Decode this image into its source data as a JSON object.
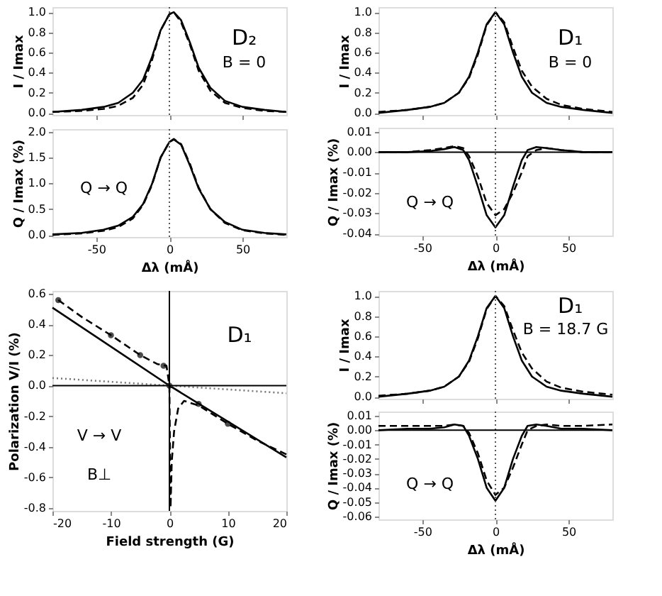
{
  "chart_data": [
    {
      "type": "line",
      "ylabel": "I / Imax",
      "annotations": [
        "D₂",
        "B = 0"
      ],
      "xlim": [
        -80,
        80
      ],
      "xticks": [
        {
          "value": -50,
          "label": null
        },
        {
          "value": 0,
          "label": null
        },
        {
          "value": 50,
          "label": null
        }
      ],
      "ylim": [
        -0.02,
        1.05
      ],
      "yticks": [
        {
          "value": 0,
          "label": "0.0"
        },
        {
          "value": 0.2,
          "label": "0.2"
        },
        {
          "value": 0.4,
          "label": "0.4"
        },
        {
          "value": 0.6,
          "label": "0.6"
        },
        {
          "value": 0.8,
          "label": "0.8"
        },
        {
          "value": 1,
          "label": "1.0"
        }
      ],
      "tick_labels": "y",
      "grid": false,
      "x": [
        -80,
        -60,
        -45,
        -35,
        -25,
        -18,
        -12,
        -6,
        0,
        3,
        8,
        14,
        20,
        28,
        38,
        50,
        65,
        80
      ],
      "series": [
        {
          "color": "#000000",
          "line_style": "solid",
          "values": [
            0.01,
            0.03,
            0.06,
            0.1,
            0.2,
            0.33,
            0.55,
            0.82,
            0.98,
            1.0,
            0.92,
            0.7,
            0.45,
            0.25,
            0.12,
            0.06,
            0.03,
            0.01
          ]
        },
        {
          "color": "#000000",
          "line_style": "dashed",
          "values": [
            0.01,
            0.02,
            0.04,
            0.07,
            0.15,
            0.28,
            0.52,
            0.82,
            0.98,
            1.0,
            0.9,
            0.68,
            0.42,
            0.22,
            0.1,
            0.05,
            0.02,
            0.01
          ]
        }
      ],
      "ref_lines": [
        {
          "axis": "x",
          "value": 0,
          "line_style": "dotted",
          "color": "#555555"
        }
      ]
    },
    {
      "type": "line",
      "ylabel": "Q / Imax (%)",
      "xlabel": "Δλ (mÅ)",
      "annotations": [
        "Q → Q"
      ],
      "xlim": [
        -80,
        80
      ],
      "xticks": [
        {
          "value": -50,
          "label": "-50"
        },
        {
          "value": 0,
          "label": "0"
        },
        {
          "value": 50,
          "label": "50"
        }
      ],
      "ylim": [
        -0.04,
        2.05
      ],
      "yticks": [
        {
          "value": 0,
          "label": "0.0"
        },
        {
          "value": 0.5,
          "label": "0.5"
        },
        {
          "value": 1,
          "label": "1.0"
        },
        {
          "value": 1.5,
          "label": "1.5"
        },
        {
          "value": 2,
          "label": "2.0"
        }
      ],
      "grid": false,
      "x": [
        -80,
        -60,
        -45,
        -35,
        -25,
        -18,
        -12,
        -6,
        0,
        3,
        8,
        14,
        20,
        28,
        38,
        50,
        65,
        80
      ],
      "series": [
        {
          "color": "#000000",
          "line_style": "solid",
          "values": [
            0.01,
            0.04,
            0.1,
            0.18,
            0.35,
            0.6,
            0.98,
            1.5,
            1.8,
            1.85,
            1.75,
            1.35,
            0.9,
            0.5,
            0.25,
            0.1,
            0.04,
            0.01
          ]
        },
        {
          "color": "#000000",
          "line_style": "dashed",
          "values": [
            0.0,
            0.03,
            0.08,
            0.15,
            0.32,
            0.58,
            0.96,
            1.5,
            1.8,
            1.86,
            1.76,
            1.38,
            0.92,
            0.5,
            0.23,
            0.09,
            0.03,
            0.0
          ]
        }
      ],
      "ref_lines": [
        {
          "axis": "x",
          "value": 0,
          "line_style": "dotted",
          "color": "#555555"
        }
      ]
    },
    {
      "type": "line",
      "ylabel": "I / Imax",
      "annotations": [
        "D₁",
        "B = 0"
      ],
      "xlim": [
        -80,
        80
      ],
      "xticks": [
        {
          "value": -50,
          "label": null
        },
        {
          "value": 0,
          "label": null
        },
        {
          "value": 50,
          "label": null
        }
      ],
      "ylim": [
        -0.02,
        1.05
      ],
      "yticks": [
        {
          "value": 0,
          "label": "0.0"
        },
        {
          "value": 0.2,
          "label": "0.2"
        },
        {
          "value": 0.4,
          "label": "0.4"
        },
        {
          "value": 0.6,
          "label": "0.6"
        },
        {
          "value": 0.8,
          "label": "0.8"
        },
        {
          "value": 1,
          "label": "1.0"
        }
      ],
      "tick_labels": "y",
      "grid": false,
      "x": [
        -80,
        -60,
        -45,
        -35,
        -25,
        -18,
        -12,
        -6,
        0,
        6,
        12,
        18,
        25,
        35,
        45,
        60,
        80
      ],
      "series": [
        {
          "color": "#000000",
          "line_style": "solid",
          "values": [
            0.0,
            0.03,
            0.06,
            0.1,
            0.2,
            0.36,
            0.6,
            0.88,
            1.0,
            0.88,
            0.6,
            0.36,
            0.2,
            0.1,
            0.06,
            0.03,
            0.0
          ]
        },
        {
          "color": "#000000",
          "line_style": "dashed",
          "values": [
            0.01,
            0.03,
            0.06,
            0.1,
            0.2,
            0.35,
            0.58,
            0.87,
            1.0,
            0.9,
            0.65,
            0.42,
            0.26,
            0.14,
            0.08,
            0.04,
            0.01
          ]
        }
      ],
      "ref_lines": [
        {
          "axis": "x",
          "value": 0,
          "line_style": "dotted",
          "color": "#555555"
        }
      ]
    },
    {
      "type": "line",
      "ylabel": "Q / Imax (%)",
      "xlabel": "Δλ (mÅ)",
      "annotations": [
        "Q → Q"
      ],
      "xlim": [
        -80,
        80
      ],
      "xticks": [
        {
          "value": -50,
          "label": "-50"
        },
        {
          "value": 0,
          "label": "0"
        },
        {
          "value": 50,
          "label": "50"
        }
      ],
      "ylim": [
        -0.041,
        0.012
      ],
      "yticks": [
        {
          "value": 0.01,
          "label": "0.01"
        },
        {
          "value": 0,
          "label": "0.00"
        },
        {
          "value": -0.01,
          "label": "-0.01"
        },
        {
          "value": -0.02,
          "label": "-0.02"
        },
        {
          "value": -0.03,
          "label": "-0.03"
        },
        {
          "value": -0.04,
          "label": "-0.04"
        }
      ],
      "grid": false,
      "x": [
        -80,
        -60,
        -45,
        -35,
        -28,
        -22,
        -18,
        -12,
        -6,
        0,
        6,
        12,
        18,
        22,
        28,
        35,
        45,
        60,
        80
      ],
      "series": [
        {
          "color": "#000000",
          "line_style": "solid",
          "values": [
            0,
            0,
            0.0005,
            0.0015,
            0.0025,
            0.001,
            -0.004,
            -0.017,
            -0.031,
            -0.037,
            -0.031,
            -0.017,
            -0.004,
            0.001,
            0.0025,
            0.002,
            0.001,
            0,
            0
          ]
        },
        {
          "color": "#000000",
          "line_style": "dashed",
          "values": [
            0,
            0,
            0.001,
            0.002,
            0.003,
            0.002,
            -0.002,
            -0.012,
            -0.025,
            -0.031,
            -0.028,
            -0.02,
            -0.01,
            -0.002,
            0.001,
            0.002,
            0.001,
            0,
            0
          ]
        }
      ],
      "ref_lines": [
        {
          "axis": "x",
          "value": 0,
          "line_style": "dotted",
          "color": "#555555"
        },
        {
          "axis": "y",
          "value": 0,
          "line_style": "solid",
          "color": "#000000"
        }
      ]
    },
    {
      "type": "line",
      "ylabel": "Polarization V/I (%)",
      "xlabel": "Field strength (G)",
      "annotations": [
        "D₁",
        "V → V",
        "B⊥"
      ],
      "xlim": [
        -20,
        20
      ],
      "xticks": [
        -20,
        -10,
        0,
        10,
        20
      ],
      "ylim": [
        -0.82,
        0.62
      ],
      "yticks": [
        {
          "value": 0.6,
          "label": "0.6"
        },
        {
          "value": 0.4,
          "label": "0.4"
        },
        {
          "value": 0.2,
          "label": "0.2"
        },
        {
          "value": 0,
          "label": "0.0"
        },
        {
          "value": -0.2,
          "label": "-0.2"
        },
        {
          "value": -0.4,
          "label": "-0.4"
        },
        {
          "value": -0.6,
          "label": "-0.6"
        },
        {
          "value": -0.8,
          "label": "-0.8"
        }
      ],
      "grid": false,
      "series": [
        {
          "color": "#000000",
          "line_style": "solid",
          "x": [
            -20,
            0,
            20
          ],
          "values": [
            0.51,
            0.0,
            -0.47
          ]
        },
        {
          "color": "#000000",
          "line_style": "dashed",
          "x": [
            -19,
            -15,
            -10,
            -5,
            -2,
            -0.5,
            0,
            0.2,
            0.4,
            0.8,
            1.5,
            2.5,
            5,
            10,
            15,
            20
          ],
          "values": [
            0.56,
            0.45,
            0.33,
            0.2,
            0.14,
            0.13,
            0.0,
            -0.8,
            -0.5,
            -0.3,
            -0.15,
            -0.1,
            -0.13,
            -0.25,
            -0.36,
            -0.45
          ]
        },
        {
          "type": "scatter",
          "marker": "circle",
          "color": "#000000",
          "x": [
            -19,
            -10,
            -5,
            -1,
            0,
            5,
            10
          ],
          "values": [
            0.56,
            0.33,
            0.2,
            0.13,
            0.0,
            -0.12,
            -0.25
          ]
        },
        {
          "color": "#777777",
          "line_style": "dotted",
          "x": [
            -20,
            20
          ],
          "values": [
            0.05,
            -0.05
          ]
        }
      ],
      "ref_lines": [
        {
          "axis": "x",
          "value": 0,
          "line_style": "solid",
          "color": "#000000"
        },
        {
          "axis": "y",
          "value": 0,
          "line_style": "solid",
          "color": "#000000"
        }
      ]
    },
    {
      "type": "line",
      "ylabel": "I / Imax",
      "annotations": [
        "D₁",
        "B = 18.7 G"
      ],
      "xlim": [
        -80,
        80
      ],
      "xticks": [
        {
          "value": -50,
          "label": null
        },
        {
          "value": 0,
          "label": null
        },
        {
          "value": 50,
          "label": null
        }
      ],
      "ylim": [
        -0.02,
        1.05
      ],
      "yticks": [
        {
          "value": 0,
          "label": "0.0"
        },
        {
          "value": 0.2,
          "label": "0.2"
        },
        {
          "value": 0.4,
          "label": "0.4"
        },
        {
          "value": 0.6,
          "label": "0.6"
        },
        {
          "value": 0.8,
          "label": "0.8"
        },
        {
          "value": 1,
          "label": "1.0"
        }
      ],
      "tick_labels": "y",
      "grid": false,
      "x": [
        -80,
        -60,
        -45,
        -35,
        -25,
        -18,
        -12,
        -6,
        0,
        6,
        12,
        18,
        25,
        35,
        45,
        60,
        80
      ],
      "series": [
        {
          "color": "#000000",
          "line_style": "solid",
          "values": [
            0.0,
            0.03,
            0.06,
            0.1,
            0.2,
            0.36,
            0.6,
            0.88,
            1.0,
            0.88,
            0.6,
            0.36,
            0.2,
            0.1,
            0.06,
            0.03,
            0.0
          ]
        },
        {
          "color": "#000000",
          "line_style": "dashed",
          "values": [
            0.01,
            0.03,
            0.06,
            0.1,
            0.2,
            0.35,
            0.58,
            0.87,
            1.0,
            0.9,
            0.66,
            0.44,
            0.28,
            0.15,
            0.09,
            0.05,
            0.02
          ]
        }
      ],
      "ref_lines": [
        {
          "axis": "x",
          "value": 0,
          "line_style": "dotted",
          "color": "#555555"
        }
      ]
    },
    {
      "type": "line",
      "ylabel": "Q / Imax (%)",
      "xlabel": "Δλ (mÅ)",
      "annotations": [
        "Q → Q"
      ],
      "xlim": [
        -80,
        80
      ],
      "xticks": [
        {
          "value": -50,
          "label": "-50"
        },
        {
          "value": 0,
          "label": "0"
        },
        {
          "value": 50,
          "label": "50"
        }
      ],
      "ylim": [
        -0.062,
        0.013
      ],
      "yticks": [
        {
          "value": 0.01,
          "label": "0.01"
        },
        {
          "value": 0,
          "label": "0.00"
        },
        {
          "value": -0.01,
          "label": "-0.01"
        },
        {
          "value": -0.02,
          "label": "-0.02"
        },
        {
          "value": -0.03,
          "label": "-0.03"
        },
        {
          "value": -0.04,
          "label": "-0.04"
        },
        {
          "value": -0.05,
          "label": "-0.05"
        },
        {
          "value": -0.06,
          "label": "-0.06"
        }
      ],
      "grid": false,
      "x": [
        -80,
        -60,
        -45,
        -35,
        -28,
        -22,
        -18,
        -12,
        -6,
        0,
        6,
        12,
        18,
        22,
        28,
        35,
        45,
        60,
        80
      ],
      "series": [
        {
          "color": "#000000",
          "line_style": "solid",
          "values": [
            0,
            0.001,
            0.001,
            0.002,
            0.004,
            0.003,
            -0.004,
            -0.02,
            -0.04,
            -0.049,
            -0.04,
            -0.02,
            -0.004,
            0.003,
            0.004,
            0.003,
            0.001,
            0.001,
            0
          ]
        },
        {
          "color": "#000000",
          "line_style": "dashed",
          "values": [
            0.003,
            0.003,
            0.003,
            0.003,
            0.004,
            0.003,
            -0.002,
            -0.016,
            -0.035,
            -0.045,
            -0.04,
            -0.026,
            -0.01,
            0.0,
            0.003,
            0.004,
            0.003,
            0.003,
            0.004
          ]
        }
      ],
      "ref_lines": [
        {
          "axis": "x",
          "value": 0,
          "line_style": "dotted",
          "color": "#555555"
        },
        {
          "axis": "y",
          "value": 0,
          "line_style": "solid",
          "color": "#000000"
        }
      ]
    }
  ]
}
